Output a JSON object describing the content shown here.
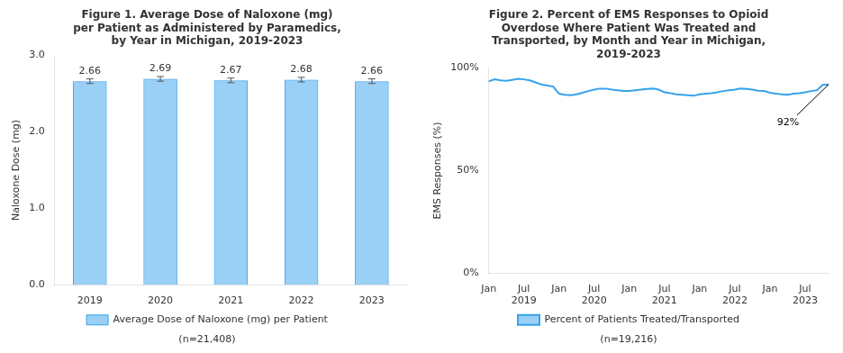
{
  "chart_data": [
    {
      "type": "bar",
      "title": "Figure 1. Average Dose of Naloxone (mg)\nper Patient as Administered by Paramedics,\nby Year in Michigan, 2019-2023",
      "subtitle": "(n=21,408)",
      "categories": [
        "2019",
        "2020",
        "2021",
        "2022",
        "2023"
      ],
      "series": [
        {
          "name": "Average Dose of Naloxone (mg) per Patient",
          "values": [
            2.66,
            2.69,
            2.67,
            2.68,
            2.66
          ],
          "errors": [
            0.03,
            0.03,
            0.03,
            0.03,
            0.03
          ]
        }
      ],
      "ylabel": "Naloxone Dose (mg)",
      "ylim": [
        0,
        3.0
      ],
      "yticks": [
        {
          "value": 0,
          "label": "0.0"
        },
        {
          "value": 1,
          "label": "1.0"
        },
        {
          "value": 2,
          "label": "2.0"
        },
        {
          "value": 3,
          "label": "3.0"
        }
      ],
      "grid": false,
      "legend": "bottom",
      "data_labels": true
    },
    {
      "type": "line",
      "title": "Figure 2. Percent of EMS Responses to Opioid\nOverdose Where Patient Was Treated and\nTransported, by Month and Year in Michigan,\n2019-2023",
      "subtitle": "(n=19,216)",
      "categories": [
        "Jan",
        null,
        null,
        null,
        null,
        null,
        [
          "Jul",
          "2019"
        ],
        null,
        null,
        null,
        null,
        null,
        "Jan",
        null,
        null,
        null,
        null,
        null,
        [
          "Jul",
          "2020"
        ],
        null,
        null,
        null,
        null,
        null,
        "Jan",
        null,
        null,
        null,
        null,
        null,
        [
          "Jul",
          "2021"
        ],
        null,
        null,
        null,
        null,
        null,
        "Jan",
        null,
        null,
        null,
        null,
        null,
        [
          "Jul",
          "2022"
        ],
        null,
        null,
        null,
        null,
        null,
        "Jan",
        null,
        null,
        null,
        null,
        null,
        [
          "Jul",
          "2023"
        ],
        null,
        null,
        null,
        null
      ],
      "series": [
        {
          "name": "Percent of Patients Treated/Transported",
          "values": [
            0.935,
            0.945,
            0.94,
            0.938,
            0.942,
            0.948,
            0.945,
            0.94,
            0.93,
            0.92,
            0.915,
            0.91,
            0.875,
            0.87,
            0.868,
            0.872,
            0.88,
            0.888,
            0.895,
            0.9,
            0.9,
            0.895,
            0.892,
            0.888,
            0.888,
            0.892,
            0.895,
            0.898,
            0.9,
            0.895,
            0.882,
            0.878,
            0.872,
            0.87,
            0.868,
            0.865,
            0.872,
            0.875,
            0.878,
            0.882,
            0.888,
            0.892,
            0.895,
            0.9,
            0.898,
            0.895,
            0.89,
            0.888,
            0.88,
            0.875,
            0.872,
            0.87,
            0.875,
            0.878,
            0.882,
            0.888,
            0.892,
            0.918,
            0.92
          ]
        }
      ],
      "ylabel": "EMS Responses (%)",
      "ylim": [
        0,
        1.0
      ],
      "yticks": [
        {
          "value": 0,
          "label": "0%"
        },
        {
          "value": 0.5,
          "label": "50%"
        },
        {
          "value": 1.0,
          "label": "100%"
        }
      ],
      "annotations": [
        {
          "text": "92%",
          "y": 0.92
        }
      ],
      "grid": false,
      "legend": "bottom"
    }
  ]
}
